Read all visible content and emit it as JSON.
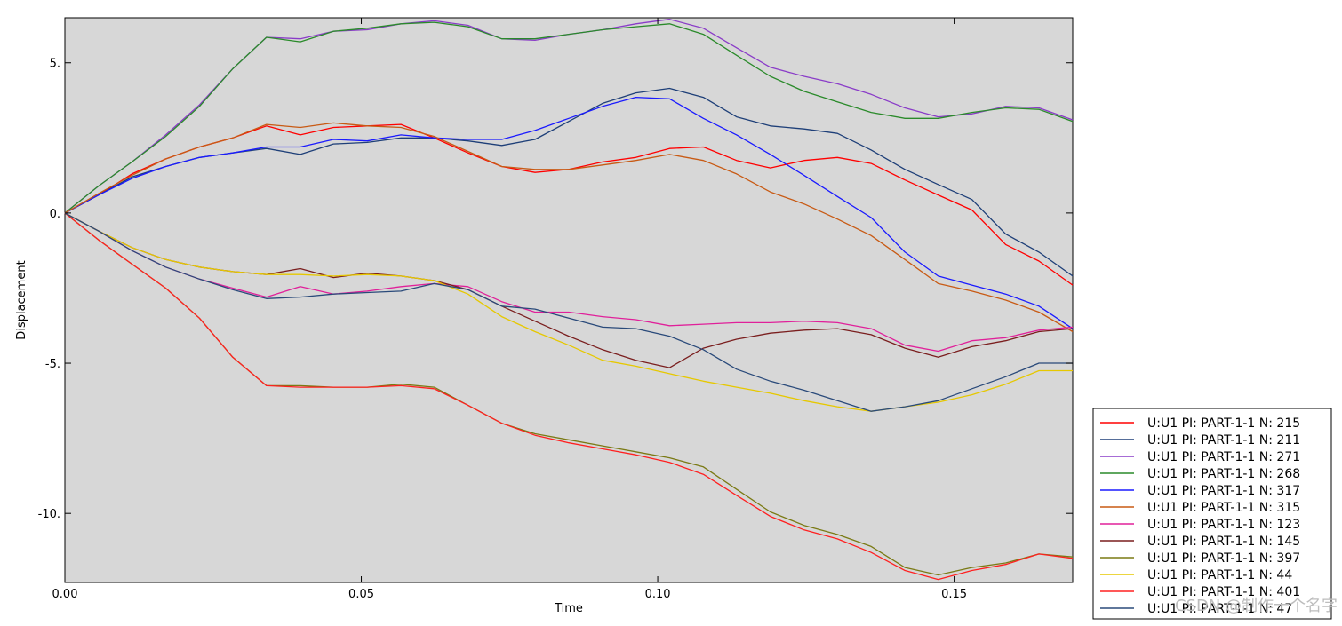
{
  "chart_data": {
    "type": "line",
    "title": "",
    "xlabel": "Time",
    "ylabel": "Displacement",
    "xlim": [
      0,
      0.17
    ],
    "ylim": [
      -12.3,
      6.5
    ],
    "grid": false,
    "legend_position": "bottom-right",
    "background": "#d7d7d7",
    "x_ticks": [
      "0.00",
      "0.05",
      "0.10",
      "0.15"
    ],
    "x_tick_values": [
      0,
      0.05,
      0.1,
      0.15
    ],
    "y_ticks": [
      "5.",
      "0.",
      "-5.",
      "-10."
    ],
    "y_tick_values": [
      5,
      0,
      -5,
      -10
    ],
    "x": [
      0,
      0.0057,
      0.0113,
      0.017,
      0.0227,
      0.0283,
      0.034,
      0.0397,
      0.0453,
      0.051,
      0.0567,
      0.0623,
      0.068,
      0.0737,
      0.0793,
      0.085,
      0.0907,
      0.0963,
      0.102,
      0.1077,
      0.1133,
      0.119,
      0.1247,
      0.1303,
      0.136,
      0.1417,
      0.1473,
      0.153,
      0.1587,
      0.1643,
      0.17
    ],
    "series": [
      {
        "name": "U:U1 PI: PART-1-1 N: 215",
        "color": "#ff0000",
        "values": [
          0,
          0.6,
          1.3,
          1.8,
          2.2,
          2.5,
          2.9,
          2.6,
          2.85,
          2.9,
          2.95,
          2.5,
          2.0,
          1.55,
          1.35,
          1.45,
          1.7,
          1.85,
          2.15,
          2.2,
          1.75,
          1.5,
          1.75,
          1.85,
          1.65,
          1.1,
          0.6,
          0.1,
          -1.05,
          -1.6,
          -2.4
        ]
      },
      {
        "name": "U:U1 PI: PART-1-1 N: 211",
        "color": "#1e3f78",
        "values": [
          0,
          0.6,
          1.2,
          1.55,
          1.85,
          2.0,
          2.15,
          1.95,
          2.3,
          2.35,
          2.5,
          2.5,
          2.4,
          2.25,
          2.45,
          3.05,
          3.65,
          4.0,
          4.15,
          3.85,
          3.2,
          2.9,
          2.8,
          2.65,
          2.1,
          1.45,
          0.95,
          0.45,
          -0.7,
          -1.3,
          -2.1
        ]
      },
      {
        "name": "U:U1 PI: PART-1-1 N: 271",
        "color": "#8a3cc8",
        "values": [
          0,
          0.9,
          1.7,
          2.6,
          3.6,
          4.8,
          5.85,
          5.8,
          6.05,
          6.1,
          6.3,
          6.4,
          6.25,
          5.8,
          5.75,
          5.95,
          6.1,
          6.3,
          6.45,
          6.15,
          5.5,
          4.85,
          4.55,
          4.3,
          3.95,
          3.5,
          3.2,
          3.3,
          3.55,
          3.5,
          3.1
        ]
      },
      {
        "name": "U:U1 PI: PART-1-1 N: 268",
        "color": "#2a8a2a",
        "values": [
          0,
          0.9,
          1.7,
          2.55,
          3.55,
          4.8,
          5.85,
          5.7,
          6.05,
          6.15,
          6.3,
          6.35,
          6.2,
          5.8,
          5.8,
          5.95,
          6.1,
          6.2,
          6.3,
          5.95,
          5.25,
          4.55,
          4.05,
          3.7,
          3.35,
          3.15,
          3.15,
          3.35,
          3.5,
          3.45,
          3.05
        ]
      },
      {
        "name": "U:U1 PI: PART-1-1 N: 317",
        "color": "#1a1aff",
        "values": [
          0,
          0.6,
          1.15,
          1.55,
          1.85,
          2.0,
          2.2,
          2.2,
          2.45,
          2.4,
          2.6,
          2.5,
          2.45,
          2.45,
          2.75,
          3.15,
          3.55,
          3.85,
          3.8,
          3.15,
          2.6,
          1.95,
          1.25,
          0.55,
          -0.15,
          -1.3,
          -2.1,
          -2.4,
          -2.7,
          -3.1,
          -3.85
        ]
      },
      {
        "name": "U:U1 PI: PART-1-1 N: 315",
        "color": "#c85a14",
        "values": [
          0,
          0.65,
          1.25,
          1.8,
          2.2,
          2.5,
          2.95,
          2.85,
          3.0,
          2.9,
          2.85,
          2.55,
          2.05,
          1.55,
          1.45,
          1.45,
          1.6,
          1.75,
          1.95,
          1.75,
          1.3,
          0.7,
          0.3,
          -0.2,
          -0.75,
          -1.55,
          -2.35,
          -2.6,
          -2.9,
          -3.3,
          -3.95
        ]
      },
      {
        "name": "U:U1 PI: PART-1-1 N: 123",
        "color": "#e0209a",
        "values": [
          0,
          -0.6,
          -1.25,
          -1.8,
          -2.2,
          -2.5,
          -2.8,
          -2.45,
          -2.7,
          -2.6,
          -2.45,
          -2.35,
          -2.45,
          -2.95,
          -3.3,
          -3.3,
          -3.45,
          -3.55,
          -3.75,
          -3.7,
          -3.65,
          -3.65,
          -3.6,
          -3.65,
          -3.85,
          -4.4,
          -4.6,
          -4.25,
          -4.15,
          -3.9,
          -3.8
        ]
      },
      {
        "name": "U:U1 PI: PART-1-1 N: 145",
        "color": "#7a1e1e",
        "values": [
          0,
          -0.6,
          -1.15,
          -1.55,
          -1.8,
          -1.95,
          -2.05,
          -1.85,
          -2.15,
          -2.0,
          -2.1,
          -2.25,
          -2.55,
          -3.1,
          -3.6,
          -4.1,
          -4.55,
          -4.9,
          -5.15,
          -4.5,
          -4.2,
          -4.0,
          -3.9,
          -3.85,
          -4.05,
          -4.5,
          -4.8,
          -4.45,
          -4.25,
          -3.95,
          -3.85
        ]
      },
      {
        "name": "U:U1 PI: PART-1-1 N: 397",
        "color": "#7a7a14",
        "values": [
          0,
          -0.9,
          -1.7,
          -2.5,
          -3.5,
          -4.8,
          -5.75,
          -5.75,
          -5.8,
          -5.8,
          -5.7,
          -5.8,
          -6.4,
          -7.0,
          -7.35,
          -7.55,
          -7.75,
          -7.95,
          -8.15,
          -8.45,
          -9.2,
          -9.95,
          -10.4,
          -10.7,
          -11.1,
          -11.8,
          -12.05,
          -11.8,
          -11.65,
          -11.35,
          -11.45
        ]
      },
      {
        "name": "U:U1 PI: PART-1-1 N: 44",
        "color": "#e6c800",
        "values": [
          0,
          -0.6,
          -1.15,
          -1.55,
          -1.8,
          -1.95,
          -2.05,
          -2.05,
          -2.1,
          -2.05,
          -2.1,
          -2.25,
          -2.7,
          -3.45,
          -3.95,
          -4.4,
          -4.9,
          -5.1,
          -5.35,
          -5.6,
          -5.8,
          -6.0,
          -6.25,
          -6.45,
          -6.6,
          -6.45,
          -6.3,
          -6.05,
          -5.7,
          -5.25,
          -5.25
        ]
      },
      {
        "name": "U:U1 PI: PART-1-1 N: 401",
        "color": "#ff2020",
        "values": [
          0,
          -0.9,
          -1.7,
          -2.5,
          -3.5,
          -4.8,
          -5.75,
          -5.8,
          -5.8,
          -5.8,
          -5.75,
          -5.85,
          -6.4,
          -7.0,
          -7.4,
          -7.65,
          -7.85,
          -8.05,
          -8.3,
          -8.7,
          -9.4,
          -10.1,
          -10.55,
          -10.85,
          -11.3,
          -11.9,
          -12.2,
          -11.9,
          -11.7,
          -11.35,
          -11.5
        ]
      },
      {
        "name": "U:U1 PI: PART-1-1 N: 47",
        "color": "#2a4a7a",
        "values": [
          0,
          -0.6,
          -1.25,
          -1.8,
          -2.2,
          -2.55,
          -2.85,
          -2.8,
          -2.7,
          -2.65,
          -2.6,
          -2.35,
          -2.55,
          -3.1,
          -3.2,
          -3.5,
          -3.8,
          -3.85,
          -4.1,
          -4.55,
          -5.2,
          -5.6,
          -5.9,
          -6.25,
          -6.6,
          -6.45,
          -6.25,
          -5.85,
          -5.45,
          -5.0,
          -5.0
        ]
      }
    ]
  },
  "watermark": "CSDN @制作一个名字"
}
